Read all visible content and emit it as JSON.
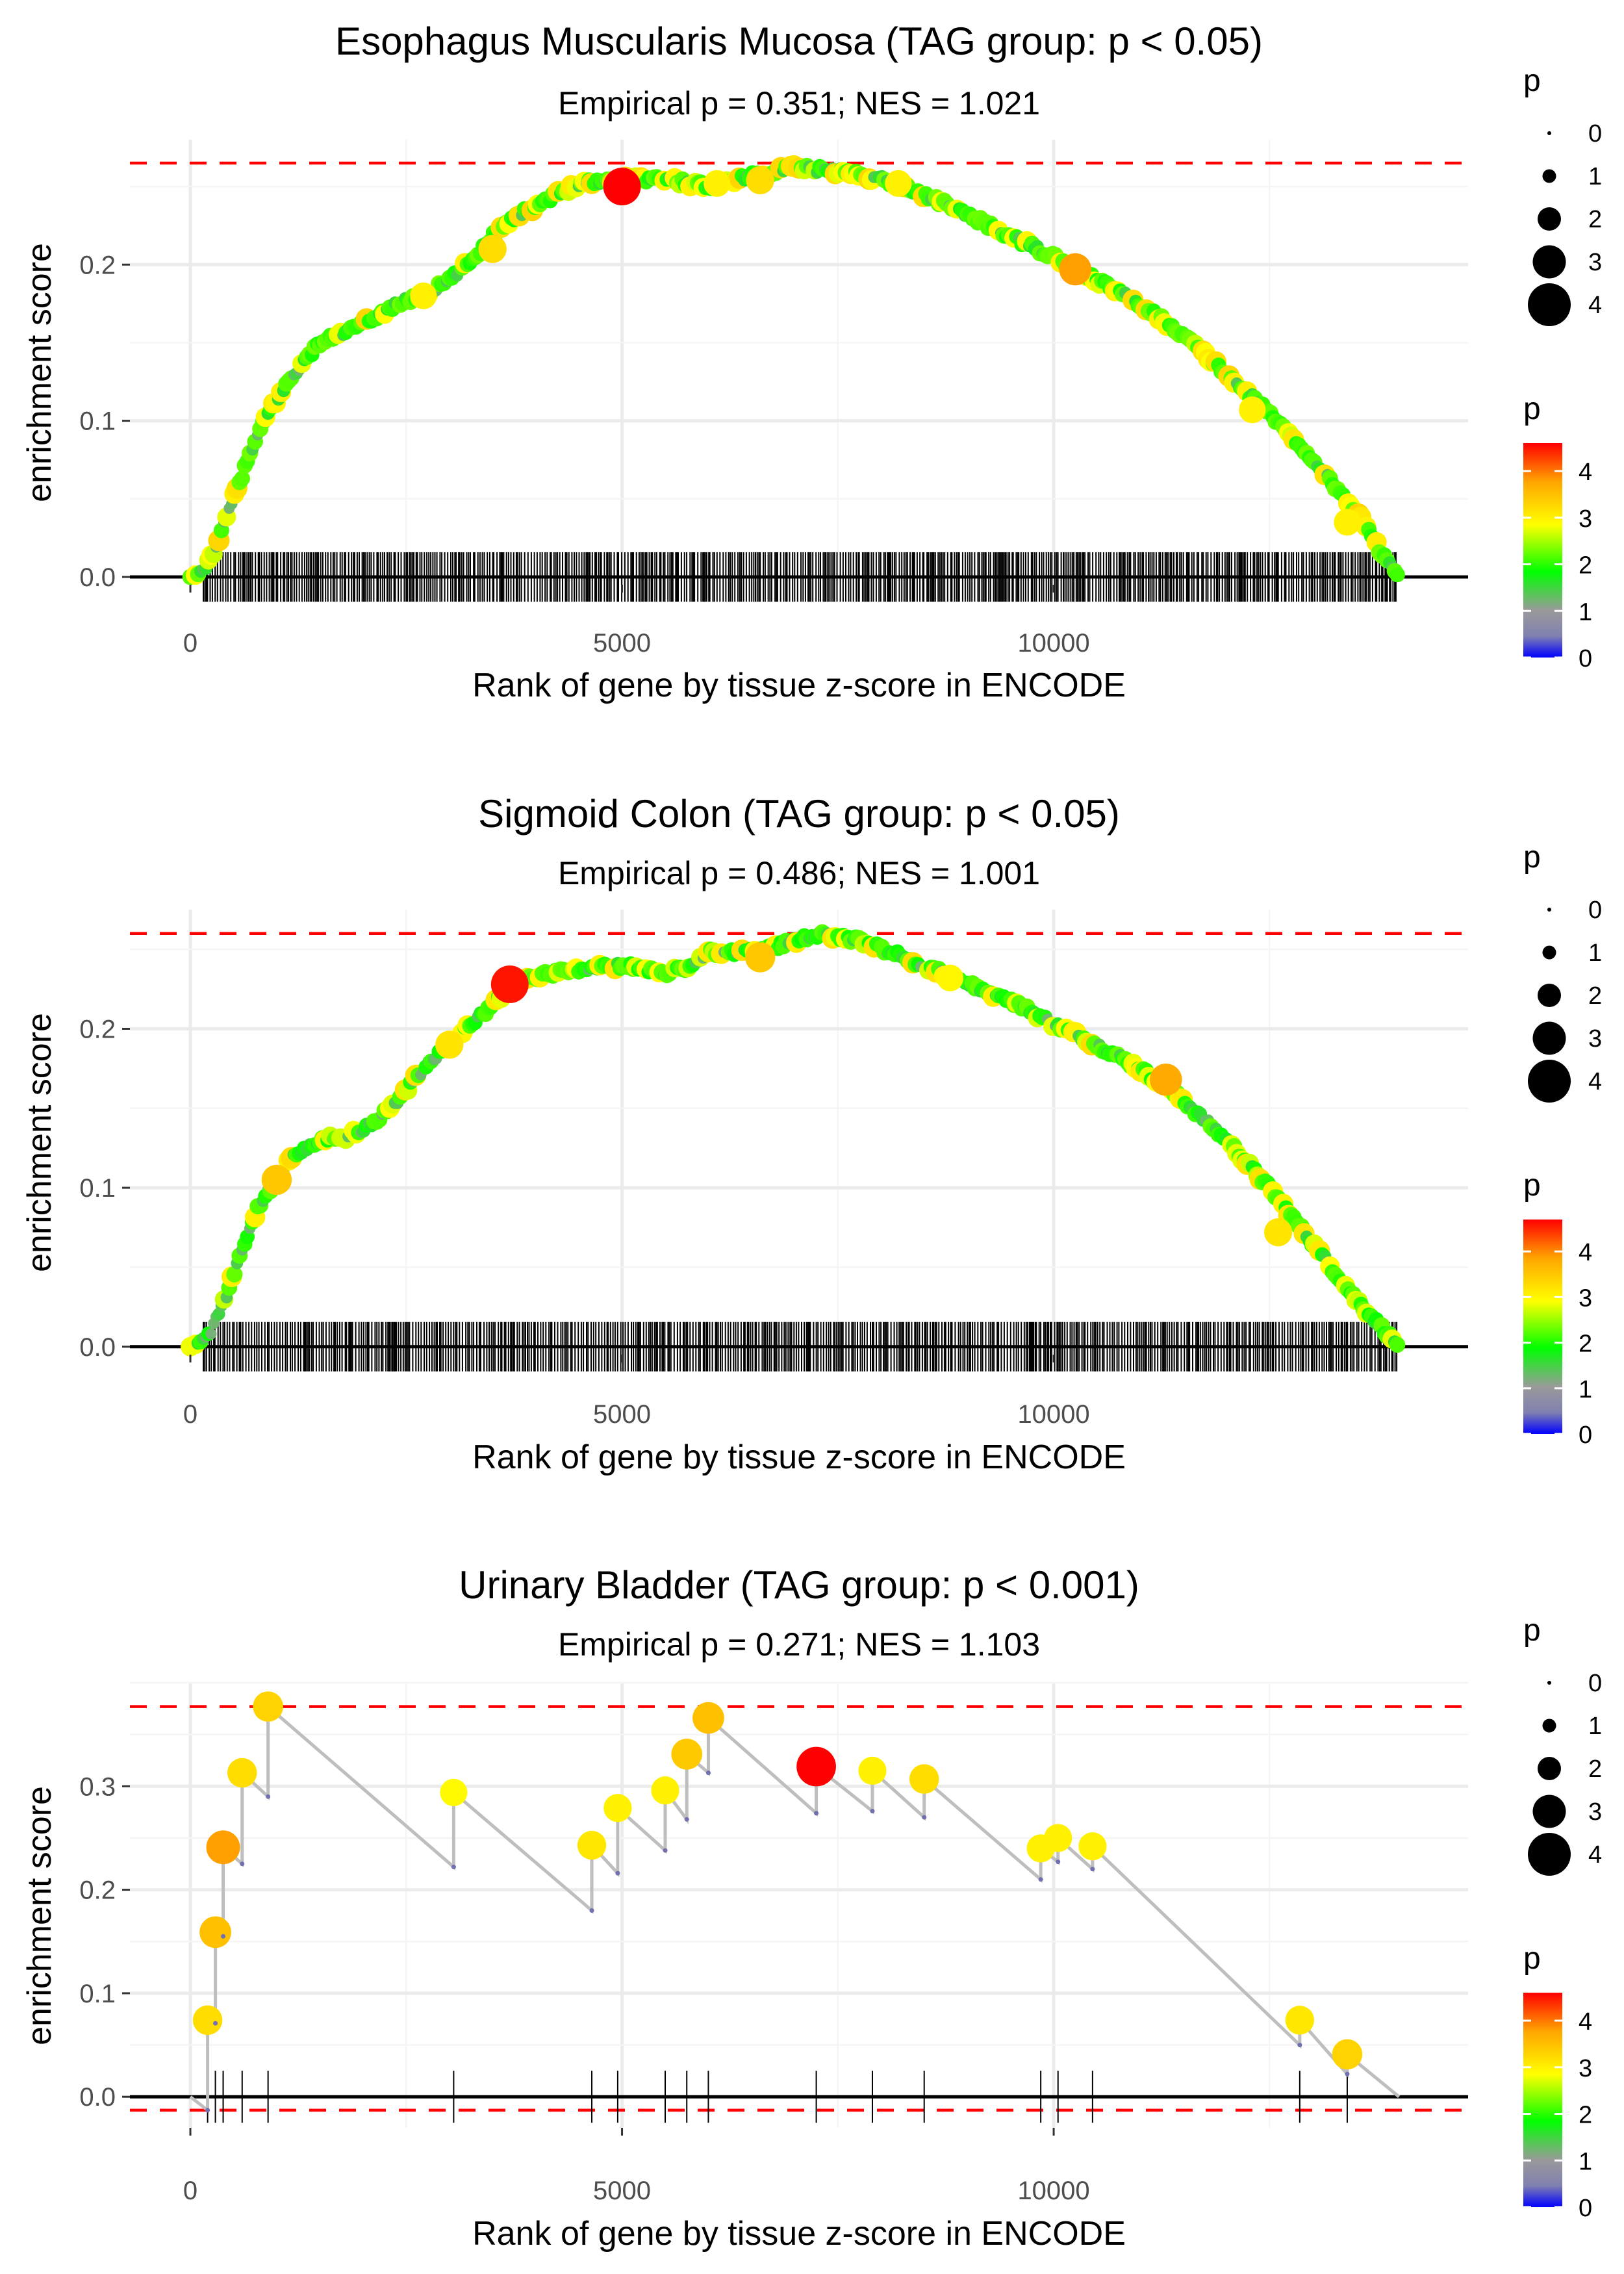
{
  "chart_data": [
    {
      "type": "line",
      "title": "Esophagus Muscularis Mucosa (TAG group: p < 0.05)",
      "subtitle": "Empirical p = 0.351; NES = 1.021",
      "xlabel": "Rank of gene by tissue z-score in ENCODE",
      "ylabel": "enrichment score",
      "xlim": [
        -700,
        14800
      ],
      "ylim": [
        -0.005,
        0.28
      ],
      "x_ticks": [
        0,
        5000,
        10000
      ],
      "x_tick_labels": [
        "0",
        "5000",
        "10000"
      ],
      "y_ticks": [
        0.0,
        0.1,
        0.2
      ],
      "y_tick_labels": [
        "0.0",
        "0.1",
        "0.2"
      ],
      "max_es": 0.265,
      "min_es": 0.0,
      "n_genes": 14000,
      "dense_hits": true,
      "curve": [
        [
          0,
          0
        ],
        [
          150,
          0.003
        ],
        [
          300,
          0.02
        ],
        [
          500,
          0.05
        ],
        [
          700,
          0.08
        ],
        [
          900,
          0.105
        ],
        [
          1200,
          0.13
        ],
        [
          1500,
          0.15
        ],
        [
          1800,
          0.157
        ],
        [
          2100,
          0.165
        ],
        [
          2400,
          0.175
        ],
        [
          2700,
          0.18
        ],
        [
          3000,
          0.19
        ],
        [
          3300,
          0.205
        ],
        [
          3600,
          0.225
        ],
        [
          4000,
          0.238
        ],
        [
          4500,
          0.252
        ],
        [
          5000,
          0.255
        ],
        [
          5500,
          0.255
        ],
        [
          6000,
          0.25
        ],
        [
          6500,
          0.257
        ],
        [
          7000,
          0.262
        ],
        [
          7500,
          0.26
        ],
        [
          8000,
          0.255
        ],
        [
          8500,
          0.245
        ],
        [
          9000,
          0.232
        ],
        [
          9500,
          0.218
        ],
        [
          10000,
          0.205
        ],
        [
          10500,
          0.19
        ],
        [
          11000,
          0.175
        ],
        [
          11500,
          0.155
        ],
        [
          12000,
          0.13
        ],
        [
          12500,
          0.105
        ],
        [
          13000,
          0.075
        ],
        [
          13500,
          0.042
        ],
        [
          13800,
          0.015
        ],
        [
          14000,
          0
        ]
      ],
      "highlights": [
        [
          5000,
          0.25,
          4.6
        ],
        [
          10250,
          0.197,
          3.8
        ],
        [
          6600,
          0.254,
          3.2
        ],
        [
          2700,
          0.18,
          3.0
        ],
        [
          3500,
          0.21,
          3.2
        ],
        [
          6100,
          0.252,
          3.0
        ],
        [
          12300,
          0.107,
          3.0
        ],
        [
          8200,
          0.252,
          3.0
        ],
        [
          13400,
          0.035,
          3.0
        ]
      ],
      "legend": {
        "size_title": "p",
        "size_labels": [
          "0",
          "1",
          "2",
          "3",
          "4"
        ],
        "color_title": "p",
        "color_labels": [
          "4",
          "3",
          "2",
          "1",
          "0"
        ],
        "color_max": 4.6
      }
    },
    {
      "type": "line",
      "title": "Sigmoid Colon (TAG group: p < 0.05)",
      "subtitle": "Empirical p = 0.486; NES = 1.001",
      "xlabel": "Rank of gene by tissue z-score in ENCODE",
      "ylabel": "enrichment score",
      "xlim": [
        -700,
        14800
      ],
      "ylim": [
        -0.005,
        0.275
      ],
      "x_ticks": [
        0,
        5000,
        10000
      ],
      "x_tick_labels": [
        "0",
        "5000",
        "10000"
      ],
      "y_ticks": [
        0.0,
        0.1,
        0.2
      ],
      "y_tick_labels": [
        "0.0",
        "0.1",
        "0.2"
      ],
      "max_es": 0.26,
      "min_es": 0.0,
      "n_genes": 14000,
      "dense_hits": true,
      "curve": [
        [
          0,
          0
        ],
        [
          200,
          0.005
        ],
        [
          400,
          0.03
        ],
        [
          600,
          0.06
        ],
        [
          800,
          0.09
        ],
        [
          1000,
          0.105
        ],
        [
          1200,
          0.12
        ],
        [
          1500,
          0.13
        ],
        [
          1800,
          0.132
        ],
        [
          2100,
          0.14
        ],
        [
          2400,
          0.155
        ],
        [
          2700,
          0.175
        ],
        [
          3000,
          0.19
        ],
        [
          3300,
          0.205
        ],
        [
          3600,
          0.22
        ],
        [
          3700,
          0.228
        ],
        [
          4000,
          0.233
        ],
        [
          4500,
          0.237
        ],
        [
          5000,
          0.24
        ],
        [
          5500,
          0.235
        ],
        [
          5800,
          0.24
        ],
        [
          6000,
          0.248
        ],
        [
          6500,
          0.248
        ],
        [
          7000,
          0.255
        ],
        [
          7300,
          0.26
        ],
        [
          7800,
          0.255
        ],
        [
          8500,
          0.24
        ],
        [
          9000,
          0.228
        ],
        [
          9500,
          0.218
        ],
        [
          10000,
          0.203
        ],
        [
          10500,
          0.19
        ],
        [
          11000,
          0.175
        ],
        [
          11500,
          0.155
        ],
        [
          12000,
          0.13
        ],
        [
          12500,
          0.1
        ],
        [
          13000,
          0.065
        ],
        [
          13500,
          0.03
        ],
        [
          13800,
          0.012
        ],
        [
          14000,
          0
        ]
      ],
      "highlights": [
        [
          3700,
          0.228,
          4.6
        ],
        [
          11300,
          0.168,
          3.8
        ],
        [
          1000,
          0.105,
          3.5
        ],
        [
          6600,
          0.245,
          3.5
        ],
        [
          3000,
          0.19,
          3.2
        ],
        [
          8800,
          0.232,
          3.0
        ],
        [
          12600,
          0.072,
          3.2
        ]
      ],
      "legend": {
        "size_title": "p",
        "size_labels": [
          "0",
          "1",
          "2",
          "3",
          "4"
        ],
        "color_title": "p",
        "color_labels": [
          "4",
          "3",
          "2",
          "1",
          "0"
        ],
        "color_max": 4.7
      }
    },
    {
      "type": "line",
      "title": "Urinary Bladder (TAG group: p < 0.001)",
      "subtitle": "Empirical p = 0.271; NES = 1.103",
      "xlabel": "Rank of gene by tissue z-score in ENCODE",
      "ylabel": "enrichment score",
      "xlim": [
        -700,
        14800
      ],
      "ylim": [
        -0.03,
        0.4
      ],
      "x_ticks": [
        0,
        5000,
        10000
      ],
      "x_tick_labels": [
        "0",
        "5000",
        "10000"
      ],
      "y_ticks": [
        0.0,
        0.1,
        0.2,
        0.3
      ],
      "y_tick_labels": [
        "0.0",
        "0.1",
        "0.2",
        "0.3"
      ],
      "max_es": 0.377,
      "min_es": -0.013,
      "n_genes": 14000,
      "dense_hits": false,
      "hits": [
        {
          "x": 200,
          "pre": -0.013,
          "es": 0.074,
          "p": 3.2
        },
        {
          "x": 290,
          "pre": 0.071,
          "es": 0.159,
          "p": 3.5
        },
        {
          "x": 380,
          "pre": 0.155,
          "es": 0.241,
          "p": 3.8
        },
        {
          "x": 600,
          "pre": 0.225,
          "es": 0.313,
          "p": 3.2
        },
        {
          "x": 900,
          "pre": 0.29,
          "es": 0.377,
          "p": 3.3
        },
        {
          "x": 3050,
          "pre": 0.222,
          "es": 0.294,
          "p": 2.9
        },
        {
          "x": 4650,
          "pre": 0.18,
          "es": 0.243,
          "p": 3.1
        },
        {
          "x": 4950,
          "pre": 0.216,
          "es": 0.279,
          "p": 3.0
        },
        {
          "x": 5500,
          "pre": 0.238,
          "es": 0.296,
          "p": 3.0
        },
        {
          "x": 5750,
          "pre": 0.268,
          "es": 0.331,
          "p": 3.4
        },
        {
          "x": 6000,
          "pre": 0.313,
          "es": 0.366,
          "p": 3.5
        },
        {
          "x": 7250,
          "pre": 0.274,
          "es": 0.319,
          "p": 4.6
        },
        {
          "x": 7900,
          "pre": 0.276,
          "es": 0.315,
          "p": 3.0
        },
        {
          "x": 8500,
          "pre": 0.27,
          "es": 0.307,
          "p": 3.2
        },
        {
          "x": 9850,
          "pre": 0.21,
          "es": 0.24,
          "p": 3.0
        },
        {
          "x": 10050,
          "pre": 0.227,
          "es": 0.25,
          "p": 3.0
        },
        {
          "x": 10450,
          "pre": 0.22,
          "es": 0.242,
          "p": 3.0
        },
        {
          "x": 12850,
          "pre": 0.05,
          "es": 0.074,
          "p": 3.1
        },
        {
          "x": 13400,
          "pre": 0.022,
          "es": 0.041,
          "p": 3.3
        }
      ],
      "legend": {
        "size_title": "p",
        "size_labels": [
          "0",
          "1",
          "2",
          "3",
          "4"
        ],
        "color_title": "p",
        "color_labels": [
          "4",
          "3",
          "2",
          "1",
          "0"
        ],
        "color_max": 4.6
      }
    }
  ]
}
